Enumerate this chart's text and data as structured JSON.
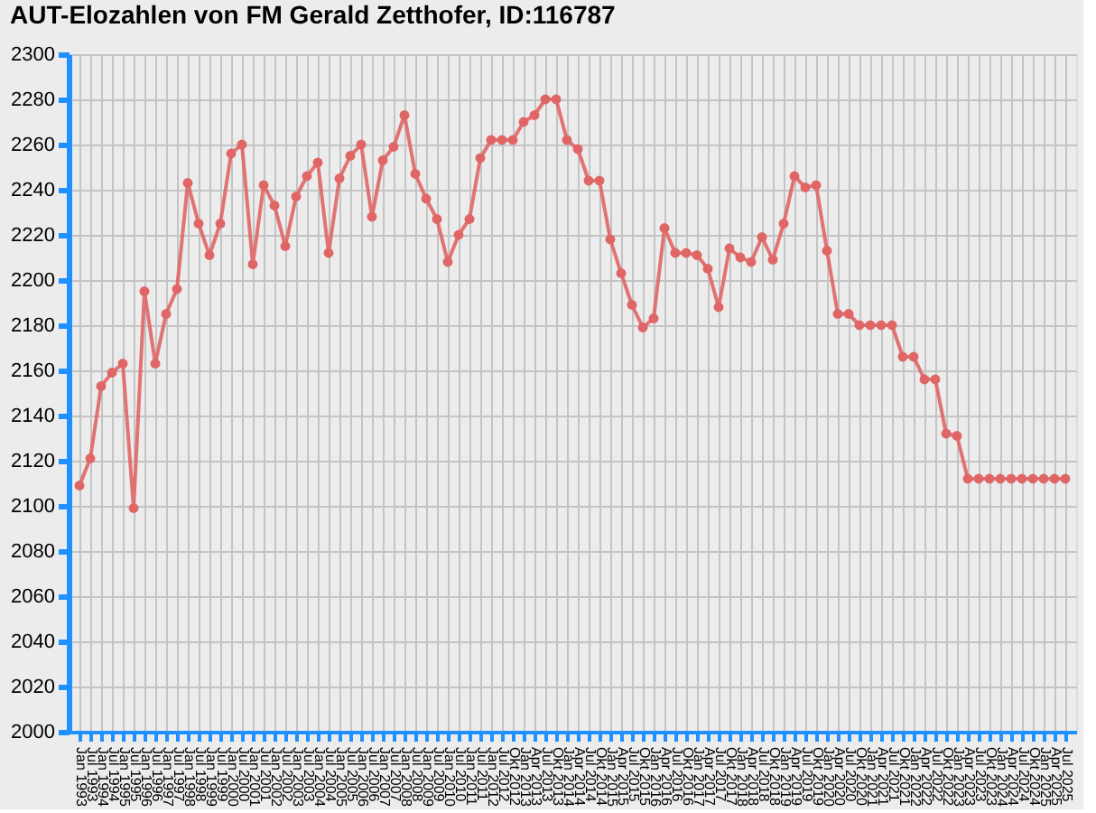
{
  "chart_data": {
    "type": "line",
    "title": "AUT-Elozahlen von FM Gerald Zetthofer, ID:116787",
    "categories": [
      "Jan 1993",
      "Jul 1993",
      "Jan 1994",
      "Jul 1994",
      "Jan 1995",
      "Jul 1995",
      "Jan 1996",
      "Jul 1996",
      "Jan 1997",
      "Jul 1997",
      "Jan 1998",
      "Jul 1998",
      "Jan 1999",
      "Jul 1999",
      "Jan 2000",
      "Jul 2000",
      "Jan 2001",
      "Jul 2001",
      "Jan 2002",
      "Jul 2002",
      "Jan 2003",
      "Jul 2003",
      "Jan 2004",
      "Jul 2004",
      "Jan 2005",
      "Jul 2005",
      "Jan 2006",
      "Jul 2006",
      "Jan 2007",
      "Jul 2007",
      "Jan 2008",
      "Jul 2008",
      "Jan 2009",
      "Jul 2009",
      "Jan 2010",
      "Jul 2010",
      "Jan 2011",
      "Jul 2011",
      "Jan 2012",
      "Jul 2012",
      "Okt 2012",
      "Jan 2013",
      "Apr 2013",
      "Jul 2013",
      "Okt 2013",
      "Jan 2014",
      "Apr 2014",
      "Jul 2014",
      "Okt 2014",
      "Jan 2015",
      "Apr 2015",
      "Jul 2015",
      "Okt 2015",
      "Jan 2016",
      "Apr 2016",
      "Jul 2016",
      "Okt 2016",
      "Jan 2017",
      "Apr 2017",
      "Jul 2017",
      "Okt 2017",
      "Jan 2018",
      "Apr 2018",
      "Jul 2018",
      "Okt 2018",
      "Jan 2019",
      "Apr 2019",
      "Jul 2019",
      "Okt 2019",
      "Jan 2020",
      "Apr 2020",
      "Jul 2020",
      "Okt 2020",
      "Jan 2021",
      "Apr 2021",
      "Jul 2021",
      "Okt 2021",
      "Jan 2022",
      "Apr 2022",
      "Jul 2022",
      "Okt 2022",
      "Jan 2023",
      "Apr 2023",
      "Jul 2023",
      "Okt 2023",
      "Jan 2024",
      "Apr 2024",
      "Jul 2024",
      "Okt 2024",
      "Jan 2025",
      "Apr 2025",
      "Jul 2025"
    ],
    "series": [
      {
        "color": "#e06666",
        "values": [
          2109,
          2121,
          2153,
          2159,
          2163,
          2099,
          2195,
          2163,
          2185,
          2196,
          2243,
          2225,
          2211,
          2225,
          2256,
          2260,
          2207,
          2242,
          2233,
          2215,
          2237,
          2246,
          2252,
          2212,
          2245,
          2255,
          2260,
          2228,
          2253,
          2259,
          2273,
          2247,
          2236,
          2227,
          2208,
          2220,
          2227,
          2254,
          2262,
          2262,
          2262,
          2270,
          2273,
          2280,
          2280,
          2262,
          2258,
          2244,
          2244,
          2218,
          2203,
          2189,
          2179,
          2183,
          2223,
          2212,
          2212,
          2211,
          2205,
          2188,
          2214,
          2210,
          2208,
          2219,
          2209,
          2225,
          2246,
          2241,
          2242,
          2213,
          2185,
          2185,
          2180,
          2180,
          2180,
          2180,
          2166,
          2166,
          2156,
          2156,
          2132,
          2131,
          2112,
          2112,
          2112,
          2112,
          2112,
          2112,
          2112,
          2112,
          2112,
          2112
        ]
      }
    ],
    "ylim": [
      2000,
      2300
    ],
    "yticks": [
      2000,
      2020,
      2040,
      2060,
      2080,
      2100,
      2120,
      2140,
      2160,
      2180,
      2200,
      2220,
      2240,
      2260,
      2280,
      2300
    ],
    "grid": true,
    "marker": "circle",
    "line_style": "solid"
  }
}
